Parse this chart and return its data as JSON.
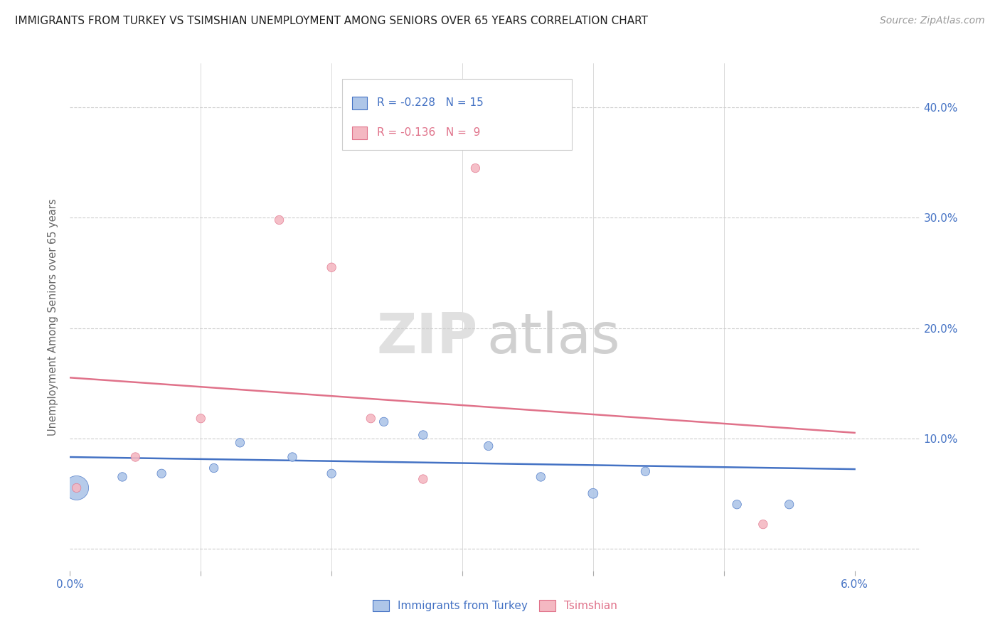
{
  "title": "IMMIGRANTS FROM TURKEY VS TSIMSHIAN UNEMPLOYMENT AMONG SENIORS OVER 65 YEARS CORRELATION CHART",
  "source": "Source: ZipAtlas.com",
  "ylabel": "Unemployment Among Seniors over 65 years",
  "xlim": [
    0.0,
    0.065
  ],
  "ylim": [
    -0.02,
    0.44
  ],
  "xticks": [
    0.0,
    0.01,
    0.02,
    0.03,
    0.04,
    0.05,
    0.06
  ],
  "xticklabels": [
    "0.0%",
    "",
    "",
    "",
    "",
    "",
    "6.0%"
  ],
  "yticks": [
    0.0,
    0.1,
    0.2,
    0.3,
    0.4
  ],
  "blue_R": -0.228,
  "blue_N": 15,
  "pink_R": -0.136,
  "pink_N": 9,
  "blue_color": "#aec6e8",
  "pink_color": "#f4b8c2",
  "blue_line_color": "#4472c4",
  "pink_line_color": "#e0728a",
  "grid_color": "#cccccc",
  "watermark_zip": "ZIP",
  "watermark_atlas": "atlas",
  "blue_scatter_x": [
    0.0005,
    0.004,
    0.007,
    0.011,
    0.013,
    0.017,
    0.02,
    0.024,
    0.027,
    0.032,
    0.036,
    0.04,
    0.044,
    0.051,
    0.055
  ],
  "blue_scatter_y": [
    0.055,
    0.065,
    0.068,
    0.073,
    0.096,
    0.083,
    0.068,
    0.115,
    0.103,
    0.093,
    0.065,
    0.05,
    0.07,
    0.04,
    0.04
  ],
  "blue_scatter_size": [
    600,
    80,
    80,
    80,
    80,
    80,
    80,
    80,
    80,
    80,
    80,
    100,
    80,
    80,
    80
  ],
  "pink_scatter_x": [
    0.0005,
    0.005,
    0.01,
    0.016,
    0.02,
    0.023,
    0.027,
    0.031,
    0.053
  ],
  "pink_scatter_y": [
    0.055,
    0.083,
    0.118,
    0.298,
    0.255,
    0.118,
    0.063,
    0.345,
    0.022
  ],
  "pink_scatter_size": [
    80,
    80,
    80,
    80,
    80,
    80,
    80,
    80,
    80
  ],
  "blue_trend_x": [
    0.0,
    0.06
  ],
  "blue_trend_y": [
    0.083,
    0.072
  ],
  "pink_trend_x": [
    0.0,
    0.06
  ],
  "pink_trend_y": [
    0.155,
    0.105
  ],
  "legend_label_blue": "Immigrants from Turkey",
  "legend_label_pink": "Tsimshian"
}
